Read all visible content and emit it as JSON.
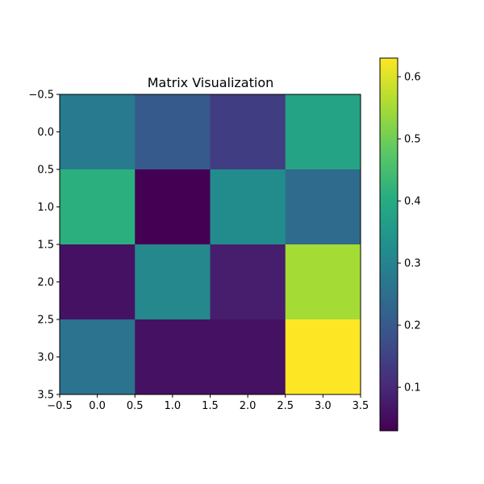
{
  "chart_data": {
    "type": "heatmap",
    "title": "Matrix Visualization",
    "xlabel": "",
    "ylabel": "",
    "colormap": "viridis",
    "matrix": [
      [
        0.28,
        0.2,
        0.14,
        0.38
      ],
      [
        0.41,
        0.03,
        0.32,
        0.24
      ],
      [
        0.06,
        0.31,
        0.08,
        0.55
      ],
      [
        0.26,
        0.06,
        0.06,
        0.63
      ]
    ],
    "xlim": [
      -0.5,
      3.5
    ],
    "ylim": [
      3.5,
      -0.5
    ],
    "x_ticks": [
      "−0.5",
      "0.0",
      "0.5",
      "1.0",
      "1.5",
      "2.0",
      "2.5",
      "3.0",
      "3.5"
    ],
    "y_ticks": [
      "−0.5",
      "0.0",
      "0.5",
      "1.0",
      "1.5",
      "2.0",
      "2.5",
      "3.0",
      "3.5"
    ],
    "colorbar": {
      "range": [
        0.03,
        0.63
      ],
      "ticks": [
        "0.1",
        "0.2",
        "0.3",
        "0.4",
        "0.5",
        "0.6"
      ]
    },
    "grid": false,
    "legend": "none"
  }
}
